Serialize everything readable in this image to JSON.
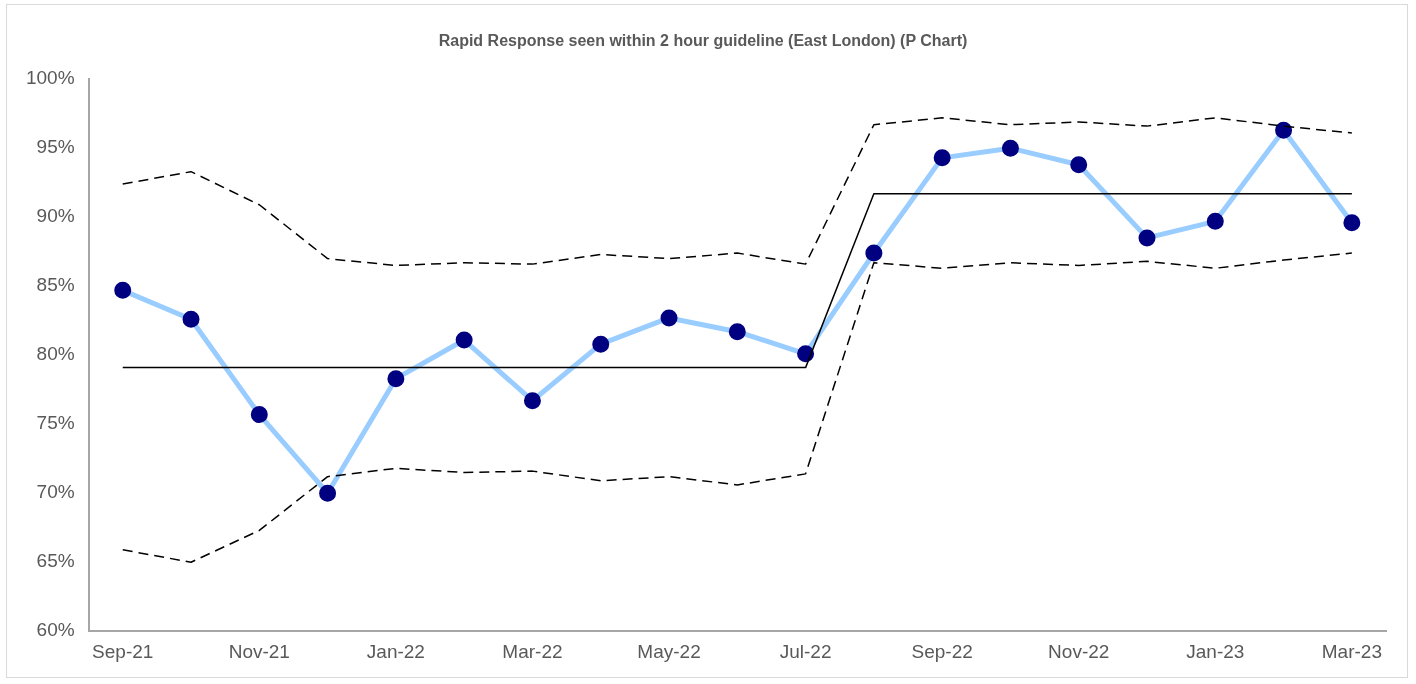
{
  "chart_data": {
    "type": "line",
    "title": "Rapid Response seen within 2 hour guideline (East London) (P Chart)",
    "categories": [
      "Sep-21",
      null,
      "Nov-21",
      null,
      "Jan-22",
      null,
      "Mar-22",
      null,
      "May-22",
      null,
      "Jul-22",
      null,
      "Sep-22",
      null,
      "Nov-22",
      null,
      "Jan-23",
      null,
      "Mar-23"
    ],
    "series": [
      {
        "color": "#000000",
        "line_style": "dashed",
        "marker": "none",
        "values": [
          92.4,
          93.3,
          90.9,
          87.0,
          86.5,
          86.7,
          86.6,
          87.3,
          87.0,
          87.4,
          86.6,
          96.7,
          97.2,
          96.7,
          96.9,
          96.6,
          97.2,
          96.6,
          96.1
        ]
      },
      {
        "color": "#000000",
        "line_style": "dashed",
        "marker": "none",
        "values": [
          65.9,
          65.0,
          67.3,
          71.2,
          71.8,
          71.5,
          71.6,
          70.9,
          71.2,
          70.6,
          71.4,
          86.7,
          86.3,
          86.7,
          86.5,
          86.8,
          86.3,
          86.9,
          87.4
        ]
      },
      {
        "color": "#000000",
        "line_style": "solid",
        "marker": "none",
        "values": [
          79.1,
          79.1,
          79.1,
          79.1,
          79.1,
          79.1,
          79.1,
          79.1,
          79.1,
          79.1,
          79.1,
          91.7,
          91.7,
          91.7,
          91.7,
          91.7,
          91.7,
          91.7,
          91.7
        ]
      },
      {
        "color": "#99ccff",
        "colors": [
          "#000080",
          "#000080",
          "#000080",
          "#000080",
          "#000080",
          "#000080",
          "#000080",
          "#000080",
          "#000080",
          "#000080",
          "#000080",
          "#000080",
          "#000080",
          "#000080",
          "#000080",
          "#000080",
          "#000080",
          "#000080",
          "#000080"
        ],
        "line_style": "solid",
        "marker": "circle",
        "values": [
          84.7,
          82.6,
          75.7,
          70.0,
          78.3,
          81.1,
          76.7,
          80.8,
          82.7,
          81.7,
          80.1,
          87.4,
          94.3,
          95.0,
          93.8,
          88.5,
          89.7,
          96.3,
          89.6
        ]
      }
    ],
    "ylim": [
      60,
      100
    ],
    "yticks": [
      {
        "value": 60,
        "label": "60%"
      },
      {
        "value": 65,
        "label": "65%"
      },
      {
        "value": 70,
        "label": "70%"
      },
      {
        "value": 75,
        "label": "75%"
      },
      {
        "value": 80,
        "label": "80%"
      },
      {
        "value": 85,
        "label": "85%"
      },
      {
        "value": 90,
        "label": "90%"
      },
      {
        "value": 95,
        "label": "95%"
      },
      {
        "value": 100,
        "label": "100%"
      }
    ],
    "grid": false,
    "legend": false
  }
}
